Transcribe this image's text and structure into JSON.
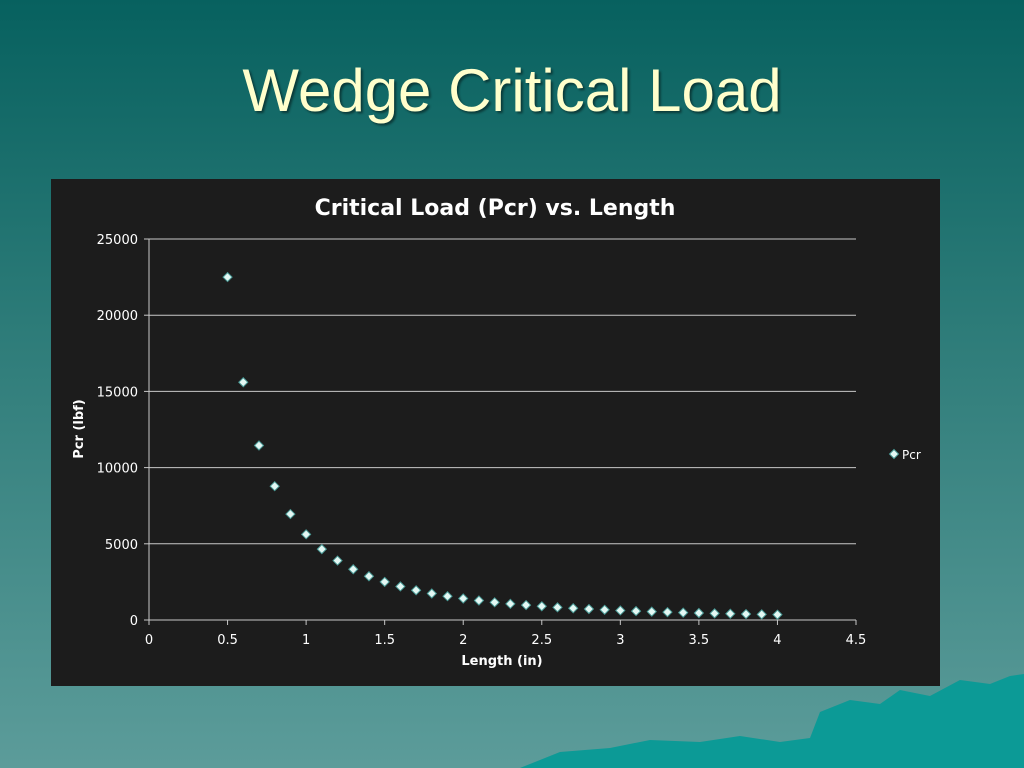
{
  "slide": {
    "title": "Wedge Critical Load"
  },
  "colors": {
    "background_top": "#07615f",
    "background_bottom": "#5c9c9a",
    "chart_background": "#1c1c1c",
    "marker_fill": "#e4f8f4",
    "marker_stroke": "#4a9a96",
    "title_color": "#ffffcc",
    "mountain_color": "#0c9a96"
  },
  "chart_data": {
    "type": "scatter",
    "title": "Critical Load (Pcr) vs. Length",
    "xlabel": "Length (in)",
    "ylabel": "Pcr (lbf)",
    "xlim": [
      0,
      4.5
    ],
    "ylim": [
      0,
      25000
    ],
    "xticks": [
      "0",
      "0.5",
      "1",
      "1.5",
      "2",
      "2.5",
      "3",
      "3.5",
      "4",
      "4.5"
    ],
    "yticks": [
      "0",
      "5000",
      "10000",
      "15000",
      "20000",
      "25000"
    ],
    "grid": "horizontal",
    "legend_position": "right",
    "marker": "diamond",
    "series": [
      {
        "name": "Pcr",
        "x": [
          0.5,
          0.6,
          0.7,
          0.8,
          0.9,
          1.0,
          1.1,
          1.2,
          1.3,
          1.4,
          1.5,
          1.6,
          1.7,
          1.8,
          1.9,
          2.0,
          2.1,
          2.2,
          2.3,
          2.4,
          2.5,
          2.6,
          2.7,
          2.8,
          2.9,
          3.0,
          3.1,
          3.2,
          3.3,
          3.4,
          3.5,
          3.6,
          3.7,
          3.8,
          3.9,
          4.0
        ],
        "y": [
          22500,
          15600,
          11450,
          8780,
          6950,
          5620,
          4650,
          3900,
          3330,
          2870,
          2500,
          2200,
          1950,
          1740,
          1560,
          1410,
          1280,
          1160,
          1060,
          980,
          900,
          830,
          770,
          720,
          670,
          625,
          585,
          550,
          515,
          485,
          460,
          435,
          410,
          390,
          370,
          350
        ]
      }
    ]
  }
}
